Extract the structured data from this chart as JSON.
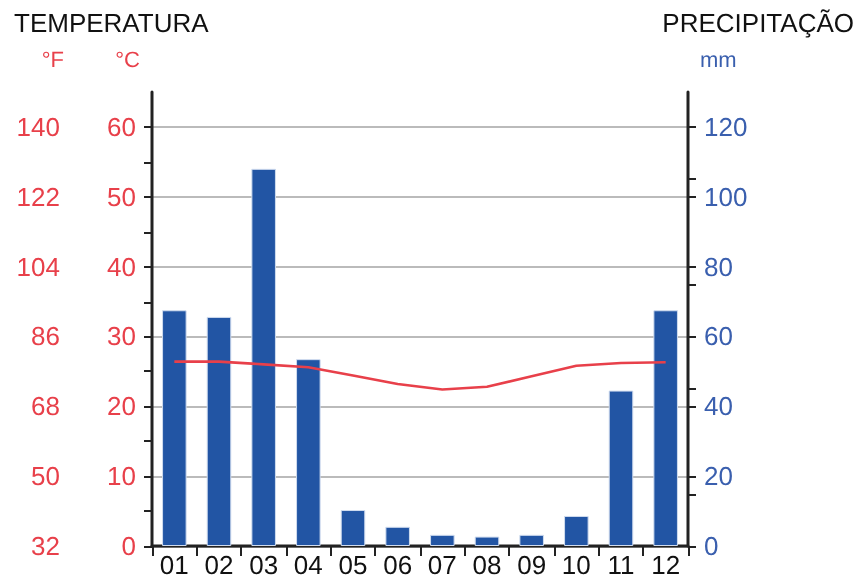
{
  "chart_data": {
    "type": "bar",
    "title": "TEMPERATURA",
    "subtitle": "PRECIPITAÇÃO",
    "ylabel": "°C",
    "y2label": "mm",
    "y3label": "°F",
    "categories": [
      "01",
      "02",
      "03",
      "04",
      "05",
      "06",
      "07",
      "08",
      "09",
      "10",
      "11",
      "12"
    ],
    "series": [
      {
        "axis": "y2",
        "color": "#2255a4",
        "values": [
          67.5,
          65.6,
          108,
          53.5,
          10.3,
          5.5,
          3.2,
          2.7,
          3.2,
          8.6,
          44.5,
          67.5
        ]
      },
      {
        "type": "line",
        "axis": "y",
        "color": "#e8404a",
        "marker": "none",
        "line_style": "solid",
        "values": [
          26.4,
          26.4,
          26.0,
          25.6,
          24.4,
          23.2,
          22.4,
          22.8,
          24.3,
          25.8,
          26.2,
          26.3
        ]
      }
    ],
    "ylim": [
      0,
      65
    ],
    "yticks": [
      0,
      10,
      20,
      30,
      40,
      50,
      60
    ],
    "y2lim": [
      0,
      130
    ],
    "y2ticks": [
      0,
      20,
      40,
      60,
      80,
      100,
      120
    ],
    "y3lim": [
      32,
      149
    ],
    "y3ticks": [
      32,
      50,
      68,
      86,
      104,
      122,
      140
    ],
    "grid": "y"
  }
}
